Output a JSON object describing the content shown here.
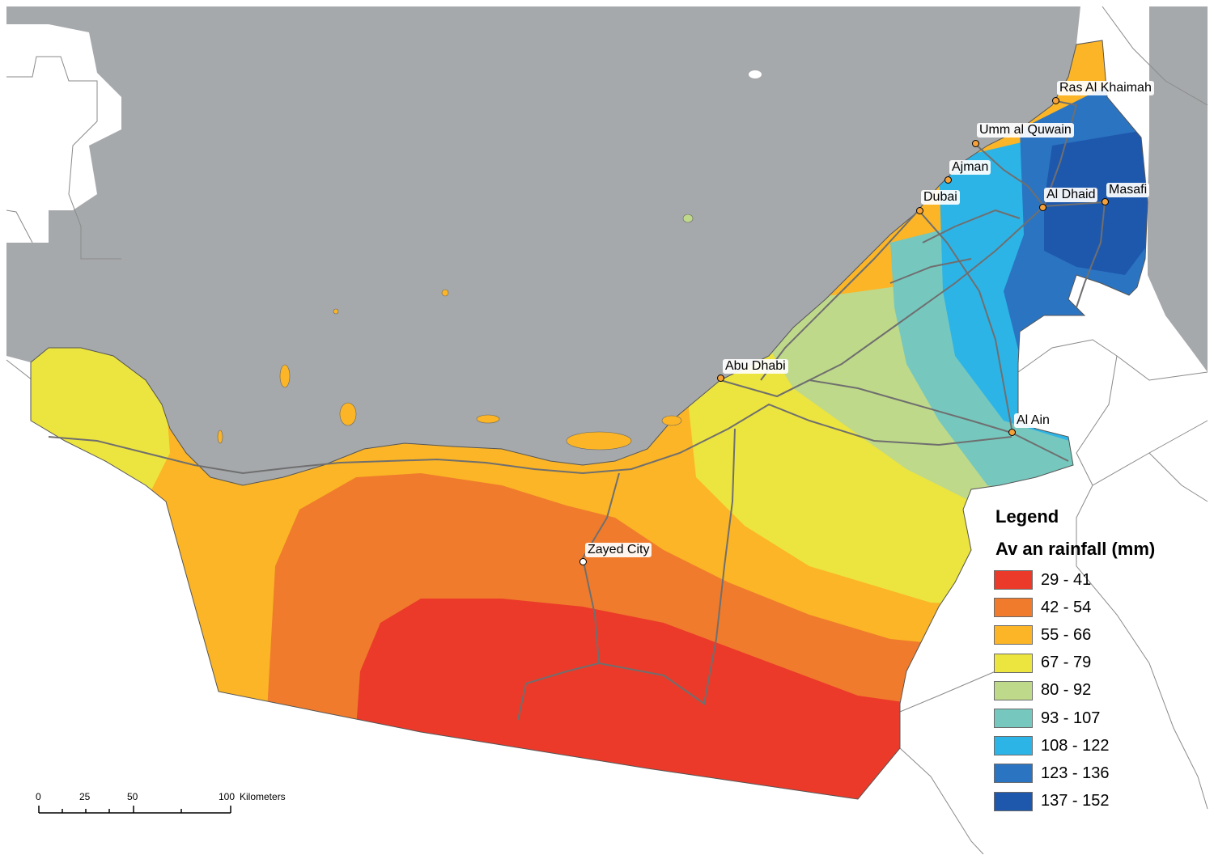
{
  "map": {
    "colors": {
      "sea": "#a6a9ac",
      "land": "#ffffff",
      "border": "#7a7a7a",
      "road": "#6f6f6f",
      "city_dot": "#f6a13a"
    },
    "cities": [
      {
        "name": "Ras Al Khaimah"
      },
      {
        "name": "Umm al Quwain"
      },
      {
        "name": "Ajman"
      },
      {
        "name": "Dubai"
      },
      {
        "name": "Al Dhaid"
      },
      {
        "name": "Masafi"
      },
      {
        "name": "Abu Dhabi"
      },
      {
        "name": "Al Ain"
      },
      {
        "name": "Zayed City"
      }
    ]
  },
  "legend": {
    "title": "Legend",
    "subtitle": "Av an rainfall (mm)",
    "classes": [
      {
        "label": "29 - 41",
        "color": "#eb3a2a"
      },
      {
        "label": "42 - 54",
        "color": "#f07b2c"
      },
      {
        "label": "55 - 66",
        "color": "#fbb526"
      },
      {
        "label": "67 - 79",
        "color": "#ece43f"
      },
      {
        "label": "80 - 92",
        "color": "#bfd98a"
      },
      {
        "label": "93 - 107",
        "color": "#76c8bf"
      },
      {
        "label": "108 - 122",
        "color": "#2db4e7"
      },
      {
        "label": "123 - 136",
        "color": "#2b74c2"
      },
      {
        "label": "137 - 152",
        "color": "#1e58ad"
      }
    ]
  },
  "scalebar": {
    "ticks": [
      "0",
      "25",
      "50",
      "100"
    ],
    "unit": "Kilometers"
  }
}
